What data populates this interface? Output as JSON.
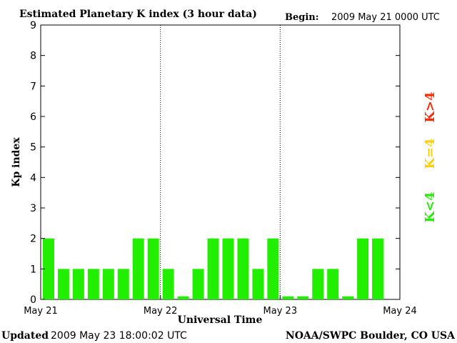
{
  "header": {
    "title": "Estimated Planetary K index (3 hour data)",
    "begin_label": "Begin:",
    "begin_value": "2009 May 21 0000 UTC"
  },
  "footer": {
    "updated_label": "Updated",
    "updated_value": "2009 May 23 18:00:02 UTC",
    "source": "NOAA/SWPC Boulder, CO USA"
  },
  "legend": [
    {
      "label": "K>4",
      "color": "#ff2a00"
    },
    {
      "label": "K=4",
      "color": "#ffd000"
    },
    {
      "label": "K<4",
      "color": "#22ee00"
    }
  ],
  "chart_data": {
    "type": "bar",
    "title": "Estimated Planetary K index (3 hour data)",
    "xlabel": "Universal Time",
    "ylabel": "Kp index",
    "ylim": [
      0,
      9
    ],
    "yticks": [
      0,
      1,
      2,
      3,
      4,
      5,
      6,
      7,
      8,
      9
    ],
    "xtick_labels": [
      "May 21",
      "May 22",
      "May 23",
      "May 24"
    ],
    "bars_per_day": 8,
    "values": [
      2,
      1,
      1,
      1,
      1,
      1,
      2,
      2,
      1,
      0.1,
      1,
      2,
      2,
      2,
      1,
      2,
      0.1,
      0.1,
      1,
      1,
      0.1,
      2,
      2
    ],
    "bar_color": "#22ee00",
    "day_separators": "dotted"
  }
}
